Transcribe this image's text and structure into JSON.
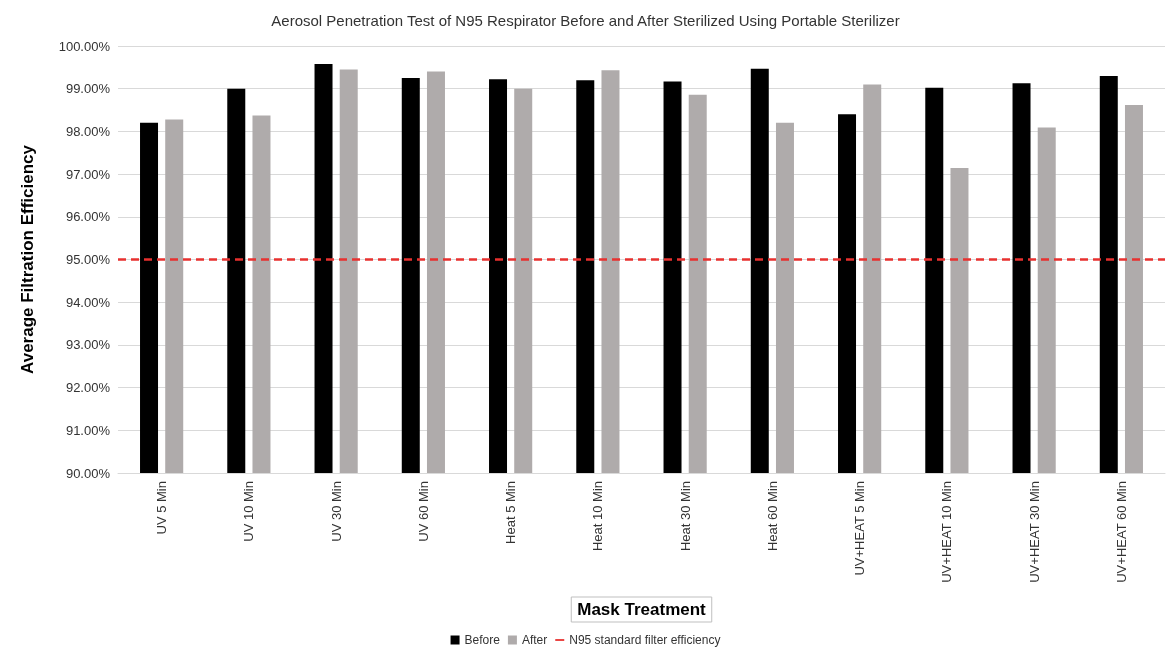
{
  "chart_data": {
    "type": "bar",
    "title": "Aerosol Penetration Test of N95 Respirator Before and After Sterilized Using Portable Sterilizer",
    "xlabel": "Mask Treatment",
    "ylabel": "Average Filtration Efficiency",
    "categories": [
      "UV 5 Min",
      "UV 10 Min",
      "UV 30 Min",
      "UV 60 Min",
      "Heat 5 Min",
      "Heat 10 Min",
      "Heat 30 Min",
      "Heat 60 Min",
      "UV+HEAT 5 Min",
      "UV+HEAT 10 Min",
      "UV+HEAT 30 Min",
      "UV+HEAT 60 Min"
    ],
    "series": [
      {
        "name": "Before",
        "color": "#000000",
        "values": [
          98.2,
          99.0,
          99.58,
          99.25,
          99.22,
          99.2,
          99.17,
          99.47,
          98.4,
          99.02,
          99.13,
          99.3
        ]
      },
      {
        "name": "After",
        "color": "#afabab",
        "values": [
          98.28,
          98.37,
          99.45,
          99.4,
          99.0,
          99.43,
          98.86,
          98.2,
          99.1,
          97.14,
          98.09,
          98.62
        ]
      }
    ],
    "ylim": [
      90,
      100
    ],
    "yticks": [
      {
        "value": 90,
        "label": "90.00%"
      },
      {
        "value": 91,
        "label": "91.00%"
      },
      {
        "value": 92,
        "label": "92.00%"
      },
      {
        "value": 93,
        "label": "93.00%"
      },
      {
        "value": 94,
        "label": "94.00%"
      },
      {
        "value": 95,
        "label": "95.00%"
      },
      {
        "value": 96,
        "label": "96.00%"
      },
      {
        "value": 97,
        "label": "97.00%"
      },
      {
        "value": 98,
        "label": "98.00%"
      },
      {
        "value": 99,
        "label": "99.00%"
      },
      {
        "value": 100,
        "label": "100.00%"
      }
    ],
    "ref_lines": [
      {
        "axis": "y",
        "value": 95,
        "label": "N95 standard filter efficiency",
        "color": "#e8312f",
        "line_style": "dashed"
      }
    ],
    "grid": "y",
    "legend": "bottom"
  }
}
